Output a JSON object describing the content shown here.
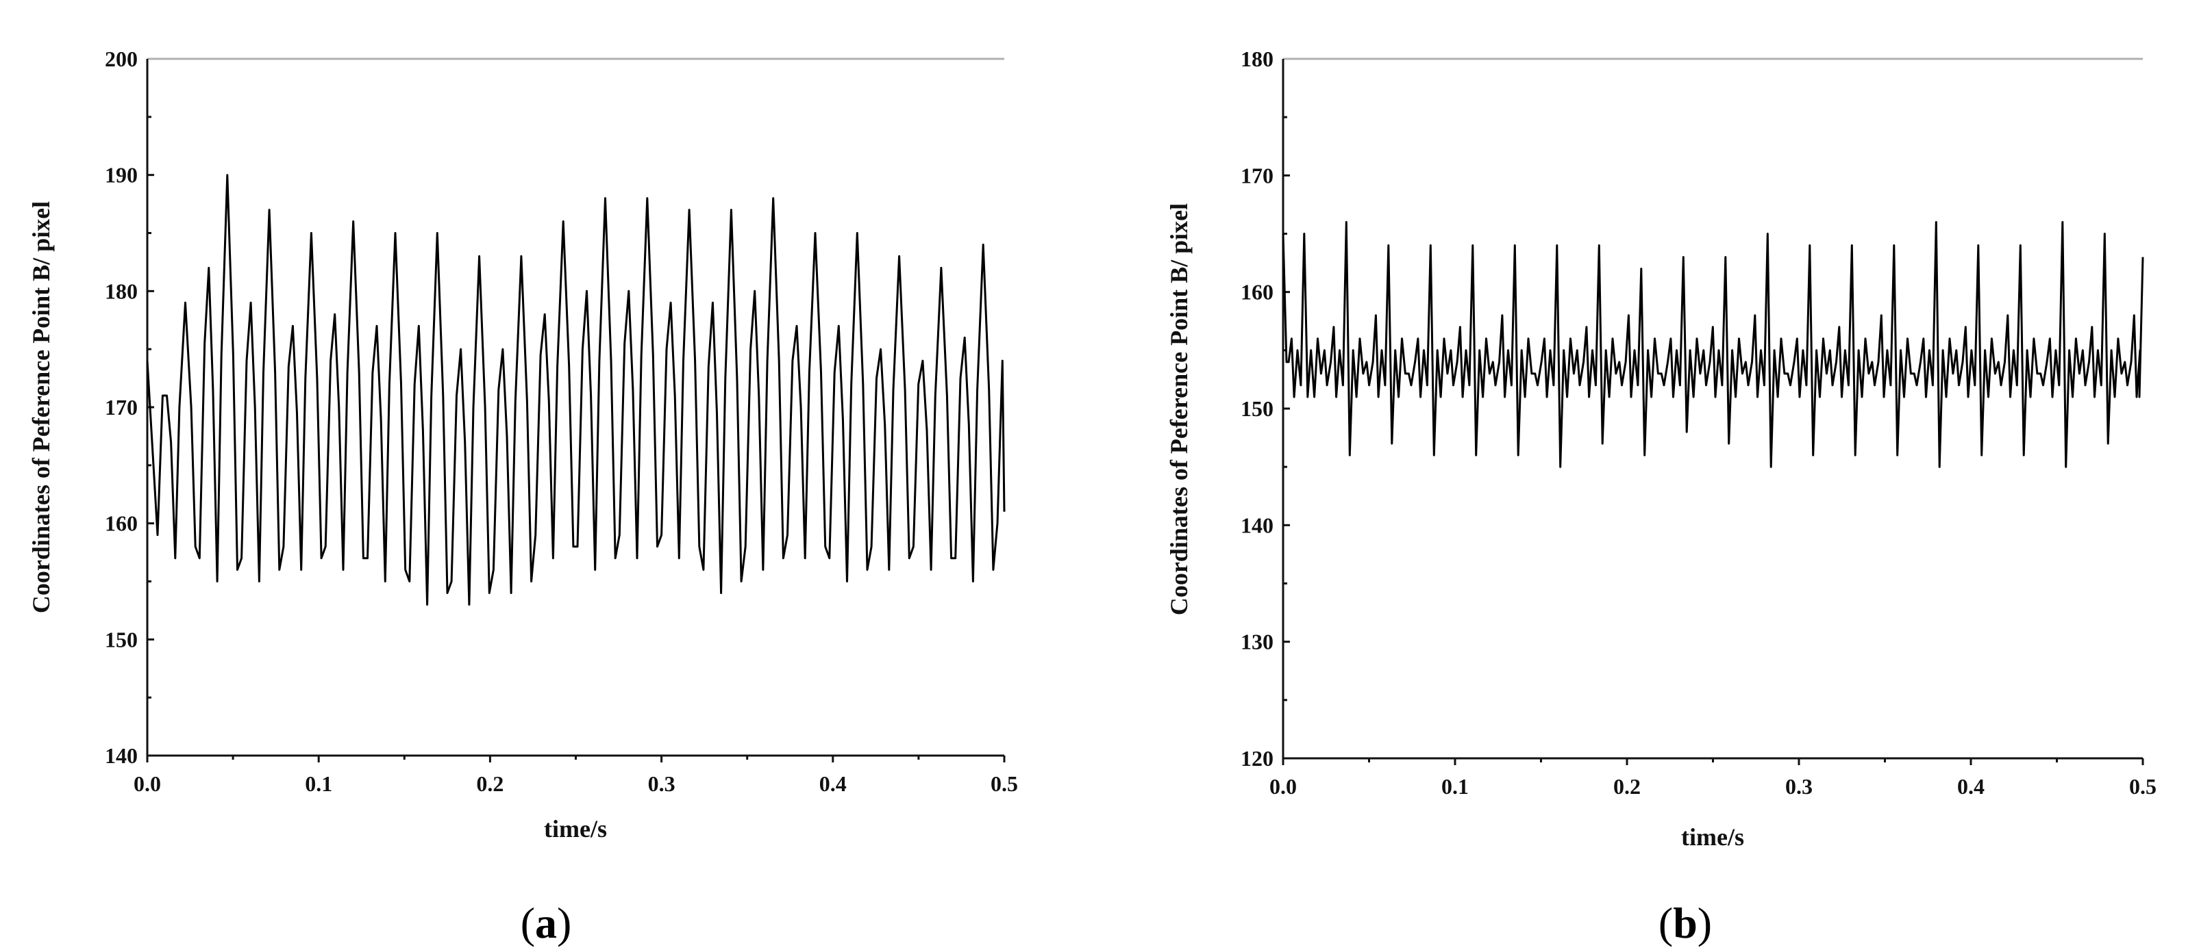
{
  "chart_data": [
    {
      "type": "line",
      "caption": "a",
      "title": "",
      "xlabel": "time/s",
      "ylabel": "Coordinates of  Peference Point B/ pixel",
      "xlim": [
        0,
        0.5
      ],
      "ylim": [
        140,
        200
      ],
      "xticks": [
        0.0,
        0.1,
        0.2,
        0.3,
        0.4,
        0.5
      ],
      "xtick_labels": [
        "0.0",
        "0.1",
        "0.2",
        "0.3",
        "0.4",
        "0.5"
      ],
      "yticks": [
        140,
        150,
        160,
        170,
        180,
        190,
        200
      ],
      "ytick_labels": [
        "140",
        "150",
        "160",
        "170",
        "180",
        "190",
        "200"
      ],
      "grid": false,
      "signal": {
        "period_s": 0.0245,
        "peaks": [
          179,
          190,
          187,
          185,
          186,
          185,
          185,
          183,
          183,
          186,
          188,
          188,
          187,
          187,
          188,
          185,
          185,
          183,
          182,
          184,
          184
        ],
        "troughs": [
          157,
          155,
          155,
          156,
          156,
          155,
          153,
          153,
          154,
          157,
          156,
          157,
          157,
          154,
          156,
          157,
          155,
          156,
          156,
          155,
          158
        ],
        "secondary_peak_offset": -8,
        "start_value": 174,
        "end_value": 161
      }
    },
    {
      "type": "line",
      "caption": "b",
      "title": "",
      "xlabel": "time/s",
      "ylabel": "Coordinates of  Peference Point B/ pixel",
      "xlim": [
        0,
        0.5
      ],
      "ylim": [
        120,
        180
      ],
      "xticks": [
        0.0,
        0.1,
        0.2,
        0.3,
        0.4,
        0.5
      ],
      "xtick_labels": [
        "0.0",
        "0.1",
        "0.2",
        "0.3",
        "0.4",
        "0.5"
      ],
      "yticks": [
        120,
        130,
        140,
        150,
        160,
        170,
        180
      ],
      "ytick_labels": [
        "120",
        "130",
        "140",
        "150",
        "160",
        "170",
        "180"
      ],
      "grid": false,
      "signal": {
        "period_s": 0.0245,
        "baseline": 153,
        "peaks": [
          165,
          166,
          164,
          164,
          164,
          164,
          164,
          164,
          162,
          163,
          163,
          165,
          164,
          164,
          164,
          166,
          164,
          164,
          166,
          165,
          164
        ],
        "troughs": [
          151,
          146,
          147,
          146,
          146,
          146,
          145,
          147,
          146,
          148,
          147,
          145,
          146,
          146,
          146,
          145,
          146,
          146,
          145,
          147,
          148
        ],
        "start_value": 165,
        "end_value": 163
      }
    }
  ]
}
